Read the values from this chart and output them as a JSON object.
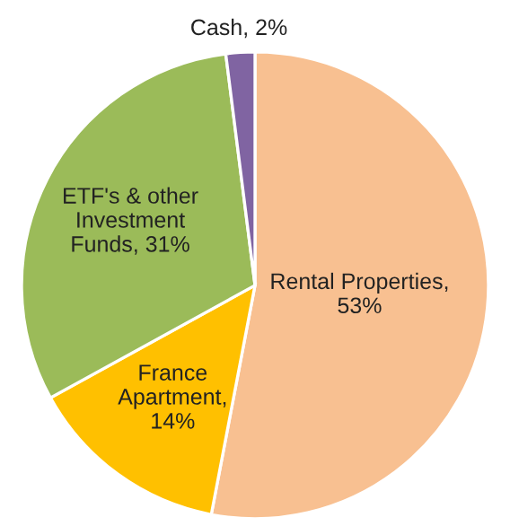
{
  "chart_data": {
    "type": "pie",
    "categories": [
      "Rental Properties",
      "France Apartment",
      "ETF's & other Investment Funds",
      "Cash"
    ],
    "values": [
      53,
      14,
      31,
      2
    ],
    "colors": [
      "#f8c091",
      "#ffc000",
      "#9bbb59",
      "#8064a2"
    ],
    "value_labels": [
      ", 53%",
      ", 14%",
      ", 31%",
      ", 2%"
    ]
  }
}
